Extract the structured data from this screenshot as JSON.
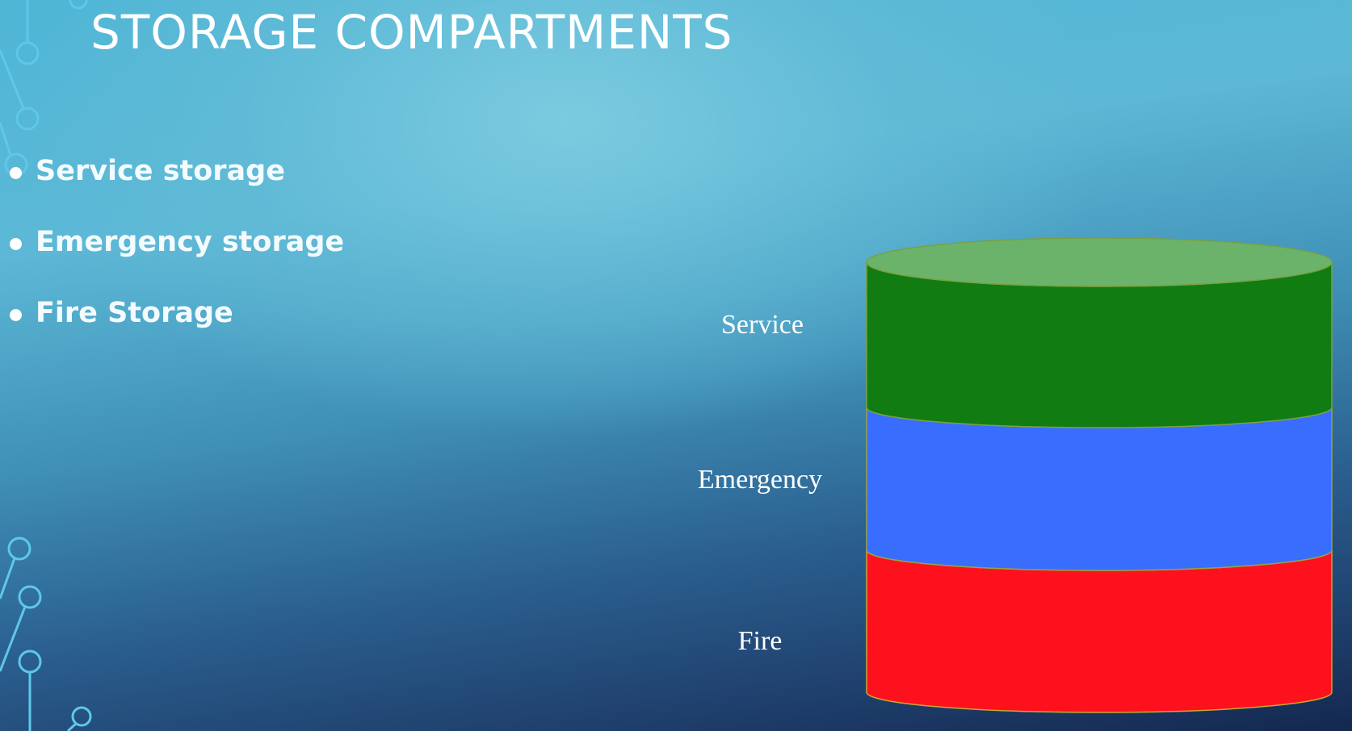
{
  "slide": {
    "title": "STORAGE COMPARTMENTS"
  },
  "bullets": [
    {
      "text": "Service storage"
    },
    {
      "text": "Emergency storage"
    },
    {
      "text": "Fire Storage"
    }
  ],
  "diagram": {
    "type": "stacked-cylinder",
    "layers": [
      {
        "label": "Service",
        "color": "#117c12",
        "top_color": "#6bb36a"
      },
      {
        "label": "Emergency",
        "color": "#396dfd"
      },
      {
        "label": "Fire",
        "color": "#fd111d"
      }
    ]
  },
  "colors": {
    "accent_line": "#5ec8ea",
    "text": "#ffffff"
  }
}
